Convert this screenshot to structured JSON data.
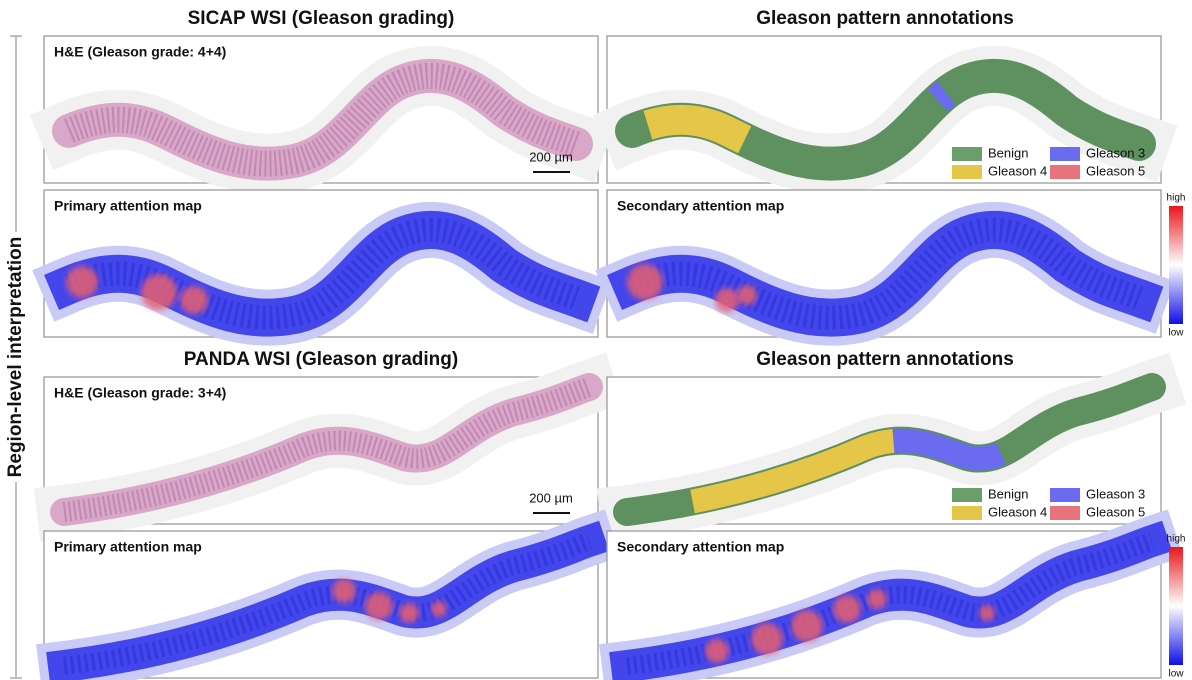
{
  "side_label": "Region-level interpretation",
  "sections": [
    {
      "title": "SICAP WSI (Gleason grading)",
      "annotation_title": "Gleason pattern annotations",
      "he_label": "H&E (Gleason grade: 4+4)",
      "scale_bar": "200 µm",
      "legend": [
        "Benign",
        "Gleason 3",
        "Gleason 4",
        "Gleason 5"
      ],
      "primary_label": "Primary attention map",
      "secondary_label": "Secondary attention map",
      "colorbar": {
        "high": "high",
        "low": "low"
      }
    },
    {
      "title": "PANDA WSI (Gleason grading)",
      "annotation_title": "Gleason pattern annotations",
      "he_label": "H&E (Gleason grade: 3+4)",
      "scale_bar": "200 µm",
      "legend": [
        "Benign",
        "Gleason 3",
        "Gleason 4",
        "Gleason 5"
      ],
      "primary_label": "Primary attention map",
      "secondary_label": "Secondary attention map",
      "colorbar": {
        "high": "high",
        "low": "low"
      }
    }
  ]
}
